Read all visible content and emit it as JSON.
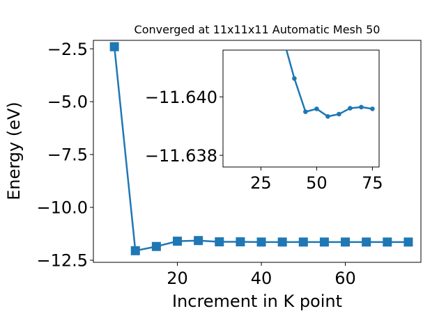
{
  "chart_data": [
    {
      "type": "line",
      "title": "Converged at 11x11x11 Automatic Mesh 50",
      "xlabel": "Increment in K point",
      "ylabel": "Energy (eV)",
      "xlim": [
        0,
        78
      ],
      "ylim": [
        -12.6,
        -2.1
      ],
      "xticks": [
        20,
        40,
        60
      ],
      "xtick_labels": [
        "20",
        "40",
        "60"
      ],
      "yticks": [
        -2.5,
        -5.0,
        -7.5,
        -10.0,
        -12.5
      ],
      "ytick_labels": [
        "−2.5",
        "−5.0",
        "−7.5",
        "−10.0",
        "−12.5"
      ],
      "grid": false,
      "color": "#1f77b4",
      "marker": "square",
      "series": [
        {
          "x": [
            5,
            10,
            15,
            20,
            25,
            30,
            35,
            40,
            45,
            50,
            55,
            60,
            65,
            70,
            75
          ],
          "y": [
            -2.4,
            -12.05,
            -11.85,
            -11.6,
            -11.57,
            -11.63,
            -11.63,
            -11.64,
            -11.64,
            -11.64,
            -11.64,
            -11.64,
            -11.64,
            -11.64,
            -11.64
          ]
        }
      ]
    },
    {
      "type": "line",
      "role": "inset",
      "title": "",
      "xlabel": "",
      "ylabel": "",
      "xlim": [
        8,
        78
      ],
      "ylim": [
        -11.6376,
        -11.6416
      ],
      "xticks": [
        25,
        50,
        75
      ],
      "xtick_labels": [
        "25",
        "50",
        "75"
      ],
      "yticks": [
        -11.64,
        -11.638
      ],
      "ytick_labels": [
        "−11.640",
        "−11.638"
      ],
      "grid": false,
      "color": "#1f77b4",
      "marker": "circle",
      "series": [
        {
          "x": [
            35,
            40,
            45,
            50,
            55,
            60,
            65,
            70,
            75
          ],
          "y": [
            -11.642,
            -11.64063,
            -11.63949,
            -11.63959,
            -11.63933,
            -11.63941,
            -11.63961,
            -11.63965,
            -11.63959
          ]
        }
      ]
    }
  ]
}
